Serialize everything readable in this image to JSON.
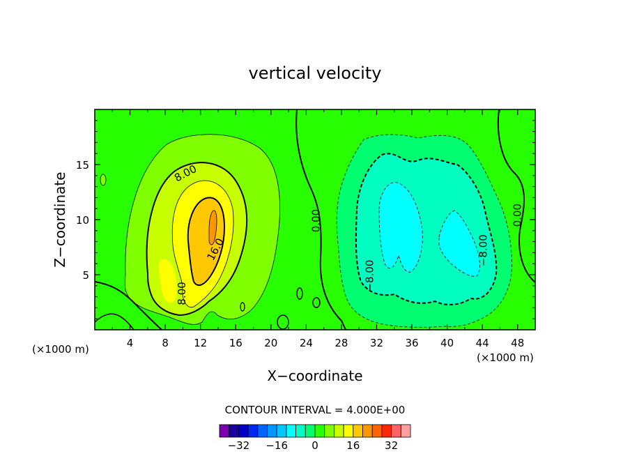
{
  "chart_data": {
    "type": "heatmap",
    "title": "vertical velocity",
    "xlabel": "X−coordinate",
    "ylabel": "Z−coordinate",
    "x_unit_left": "(×1000 m)",
    "x_unit_right": "(×1000 m)",
    "xlim": [
      0,
      50
    ],
    "ylim": [
      0,
      20
    ],
    "x_ticks": [
      4,
      8,
      12,
      16,
      20,
      24,
      28,
      32,
      36,
      40,
      44,
      48
    ],
    "y_ticks": [
      5,
      10,
      15
    ],
    "contour_interval_text": "CONTOUR INTERVAL = 4.000E+00",
    "contour_interval": 4,
    "colorbar": {
      "levels": [
        -36,
        -32,
        -28,
        -24,
        -20,
        -16,
        -12,
        -8,
        -4,
        0,
        4,
        8,
        12,
        16,
        20,
        24,
        28,
        32,
        36
      ],
      "colors": [
        "#7a00b0",
        "#1a00a0",
        "#0000c8",
        "#0028f0",
        "#0064ff",
        "#0096ff",
        "#00c8ff",
        "#00ffff",
        "#00ffc0",
        "#00ff70",
        "#28ff00",
        "#80ff00",
        "#c8ff00",
        "#ffff00",
        "#ffc800",
        "#ff9600",
        "#ff6400",
        "#ff2800",
        "#ff6464",
        "#ffa0a0"
      ],
      "tick_labels": [
        {
          "value": -32,
          "label": "−32"
        },
        {
          "value": -16,
          "label": "−16"
        },
        {
          "value": 0,
          "label": "0"
        },
        {
          "value": 16,
          "label": "16"
        },
        {
          "value": 32,
          "label": "32"
        }
      ]
    },
    "contour_labels": [
      {
        "text": "8.00",
        "x": 10.3,
        "z": 14.2,
        "rotate": -28
      },
      {
        "text": "16.0",
        "x": 13.7,
        "z": 7.3,
        "rotate": -62
      },
      {
        "text": "8.00",
        "x": 9.9,
        "z": 3.3,
        "rotate": -90
      },
      {
        "text": "0.00",
        "x": 25.1,
        "z": 9.9,
        "rotate": -90
      },
      {
        "text": "−8.00",
        "x": 31.2,
        "z": 4.9,
        "rotate": -90
      },
      {
        "text": "−8.00",
        "x": 44.1,
        "z": 7.2,
        "rotate": -90
      },
      {
        "text": "0.00",
        "x": 48.0,
        "z": 10.4,
        "rotate": -90
      }
    ],
    "features": [
      {
        "kind": "updraft",
        "center_x": 13,
        "center_z": 9,
        "max_value": 20
      },
      {
        "kind": "downdraft",
        "center_x": 37,
        "center_z": 9,
        "min_value": -16
      }
    ]
  }
}
